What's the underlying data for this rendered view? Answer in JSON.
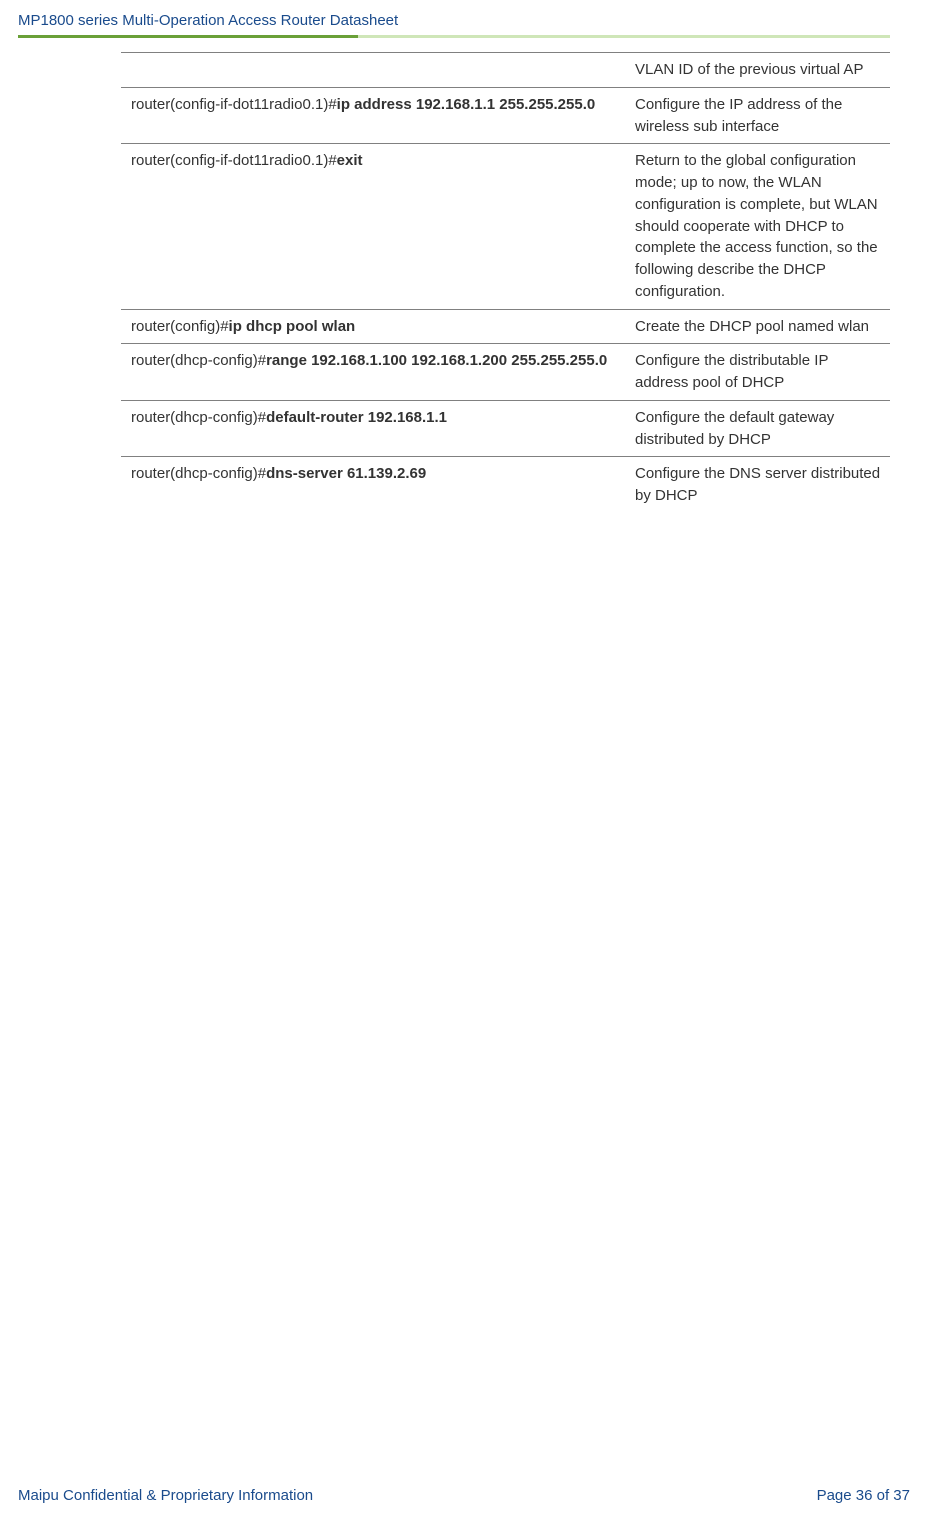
{
  "header": {
    "title": "MP1800 series Multi-Operation Access Router Datasheet"
  },
  "footer": {
    "left": "Maipu Confidential & Proprietary Information",
    "right": "Page 36 of 37"
  },
  "colors": {
    "brand": "#1a4b8c",
    "rule_dark": "#6aa038",
    "rule_light": "#cfe6b8",
    "border": "#808080"
  },
  "rows": [
    {
      "cmd_segments": [
        {
          "text": "",
          "bold": false
        }
      ],
      "desc": "VLAN ID of the previous virtual AP"
    },
    {
      "cmd_segments": [
        {
          "text": "router(config-if-dot11radio0.1)#",
          "bold": false
        },
        {
          "text": "ip address 192.168.1.1 255.255.255.0",
          "bold": true
        }
      ],
      "desc": "Configure the IP address of the wireless sub interface"
    },
    {
      "cmd_segments": [
        {
          "text": "router(config-if-dot11radio0.1)#",
          "bold": false
        },
        {
          "text": "exit",
          "bold": true
        }
      ],
      "desc": "Return to the global configuration mode; up to now, the WLAN configuration is complete, but WLAN should cooperate with DHCP to complete the access function, so the following describe the DHCP configuration."
    },
    {
      "cmd_segments": [
        {
          "text": "router(config)#",
          "bold": false
        },
        {
          "text": "ip dhcp pool wlan",
          "bold": true
        }
      ],
      "desc": "Create the DHCP pool named wlan"
    },
    {
      "cmd_segments": [
        {
          "text": "router(dhcp-config)#",
          "bold": false
        },
        {
          "text": "range 192.168.1.100 192.168.1.200 255.255.255.0",
          "bold": true
        }
      ],
      "desc": "Configure the distributable IP address pool of DHCP"
    },
    {
      "cmd_segments": [
        {
          "text": "router(dhcp-config)#",
          "bold": false
        },
        {
          "text": "default-router 192.168.1.1",
          "bold": true
        }
      ],
      "desc": "Configure the default gateway distributed by DHCP"
    },
    {
      "cmd_segments": [
        {
          "text": "router(dhcp-config)#",
          "bold": false
        },
        {
          "text": "dns-server 61.139.2.69",
          "bold": true
        }
      ],
      "desc": "Configure the DNS server distributed by DHCP"
    }
  ]
}
